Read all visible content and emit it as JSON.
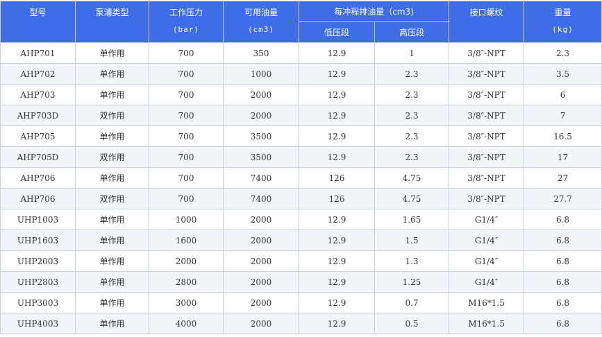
{
  "header": {
    "model": "型号",
    "pump_type": "泵浦类型",
    "pressure": "工作压力",
    "pressure_unit": "(bar)",
    "capacity": "可用油量",
    "capacity_unit": "(cm3)",
    "displacement": "每冲程排油量（cm3)",
    "low": "低压段",
    "high": "高压段",
    "thread": "接口螺纹",
    "weight": "重量",
    "weight_unit": "(kg)"
  },
  "table": {
    "rows": [
      [
        "AHP701",
        "单作用",
        "700",
        "350",
        "12.9",
        "1",
        "3/8″-NPT",
        "2.3"
      ],
      [
        "AHP702",
        "单作用",
        "700",
        "1000",
        "12.9",
        "2.3",
        "3/8″-NPT",
        "3.5"
      ],
      [
        "AHP703",
        "单作用",
        "700",
        "2000",
        "12.9",
        "2.3",
        "3/8″-NPT",
        "6"
      ],
      [
        "AHP703D",
        "双作用",
        "700",
        "2000",
        "12.9",
        "2.3",
        "3/8″-NPT",
        "7"
      ],
      [
        "AHP705",
        "单作用",
        "700",
        "3500",
        "12.9",
        "2.3",
        "3/8″-NPT",
        "16.5"
      ],
      [
        "AHP705D",
        "双作用",
        "700",
        "3500",
        "12.9",
        "2.3",
        "3/8″-NPT",
        "17"
      ],
      [
        "AHP706",
        "单作用",
        "700",
        "7400",
        "126",
        "4.75",
        "3/8″-NPT",
        "27"
      ],
      [
        "AHP706",
        "双作用",
        "700",
        "7400",
        "126",
        "4.75",
        "3/8″-NPT",
        "27.7"
      ],
      [
        "UHP1003",
        "单作用",
        "1000",
        "2000",
        "12.9",
        "1.65",
        "G1/4″",
        "6.8"
      ],
      [
        "UHP1603",
        "单作用",
        "1600",
        "2000",
        "12.9",
        "1.5",
        "G1/4″",
        "6.8"
      ],
      [
        "UHP2003",
        "单作用",
        "2000",
        "2000",
        "12.9",
        "1.3",
        "G1/4″",
        "6.8"
      ],
      [
        "UHP2803",
        "单作用",
        "2800",
        "2000",
        "12.9",
        "1.25",
        "G1/4″",
        "6.8"
      ],
      [
        "UHP3003",
        "单作用",
        "3000",
        "2000",
        "12.9",
        "0.7",
        "M16*1.5",
        "6.8"
      ],
      [
        "UHP4003",
        "单作用",
        "4000",
        "2000",
        "12.9",
        "0.5",
        "M16*1.5",
        "6.8"
      ]
    ]
  }
}
